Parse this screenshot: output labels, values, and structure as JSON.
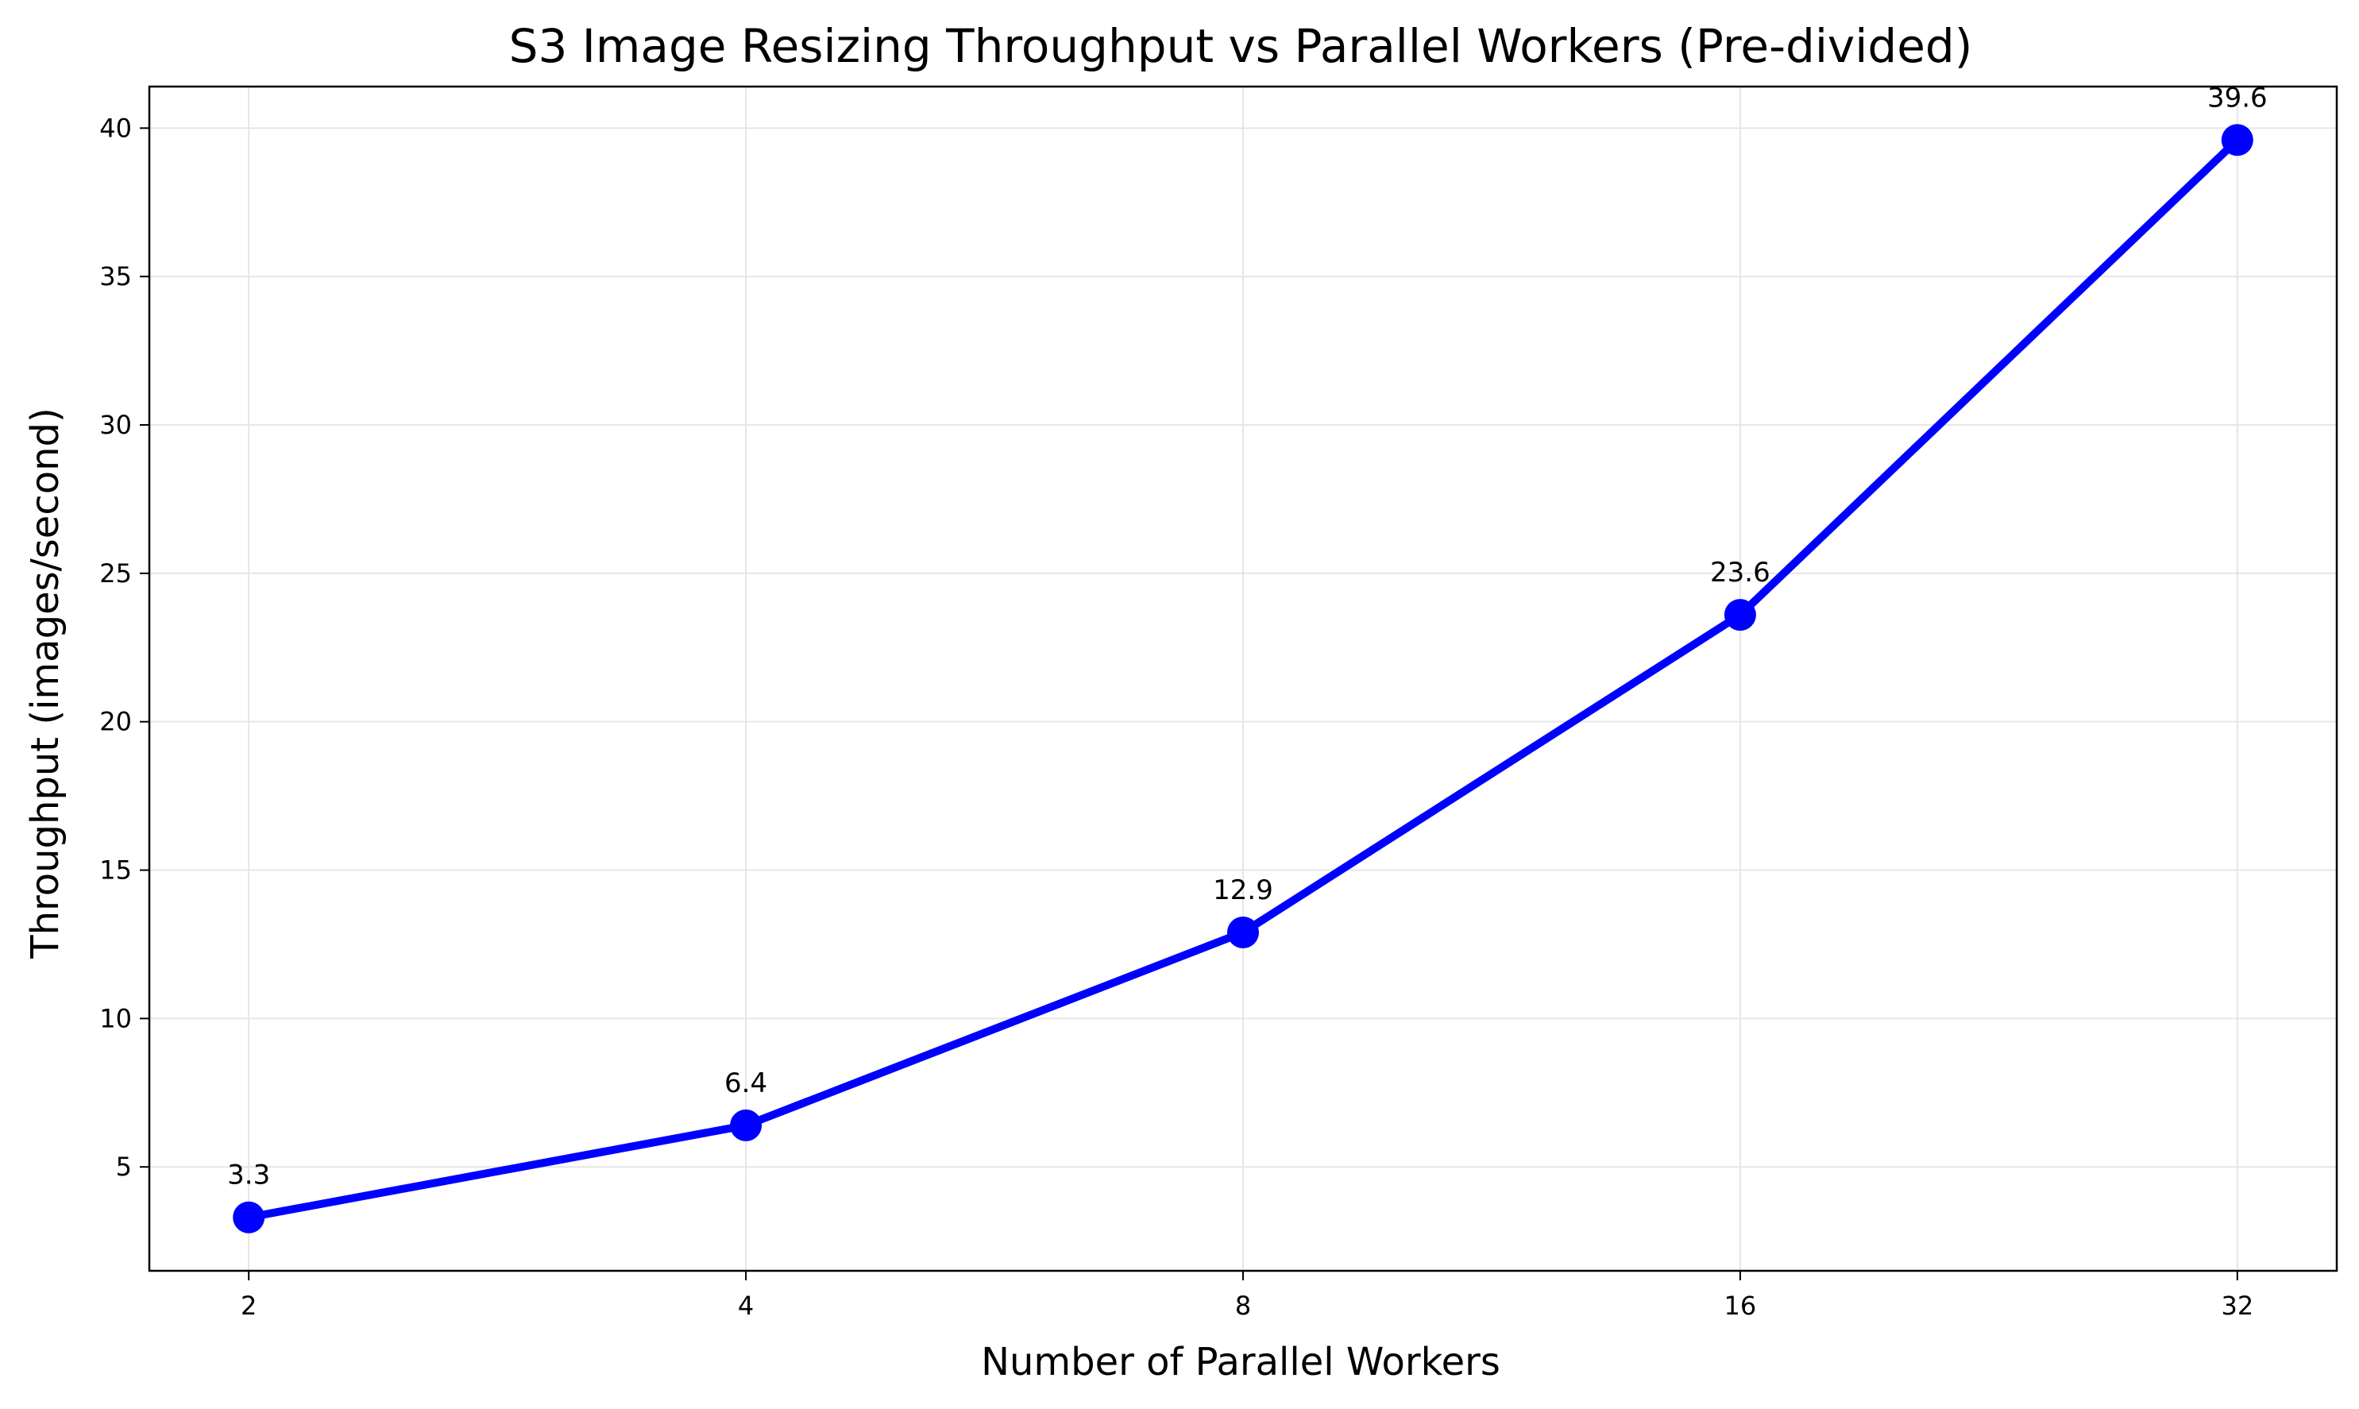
{
  "chart_data": {
    "type": "line",
    "title": "S3 Image Resizing Throughput vs Parallel Workers (Pre-divided)",
    "xlabel": "Number of Parallel Workers",
    "ylabel": "Throughput (images/second)",
    "x_scale": "log2",
    "x": [
      2,
      4,
      8,
      16,
      32
    ],
    "x_tick_labels": [
      "2",
      "4",
      "8",
      "16",
      "32"
    ],
    "series": [
      {
        "values": [
          3.3,
          6.4,
          12.9,
          23.6,
          39.6
        ],
        "data_labels": [
          "3.3",
          "6.4",
          "12.9",
          "23.6",
          "39.6"
        ],
        "color": "#0000ff",
        "marker": "circle"
      }
    ],
    "ylim": [
      1.5,
      41.4
    ],
    "y_ticks": [
      5,
      10,
      15,
      20,
      25,
      30,
      35,
      40
    ],
    "y_tick_labels": [
      "5",
      "10",
      "15",
      "20",
      "25",
      "30",
      "35",
      "40"
    ],
    "grid": true
  }
}
